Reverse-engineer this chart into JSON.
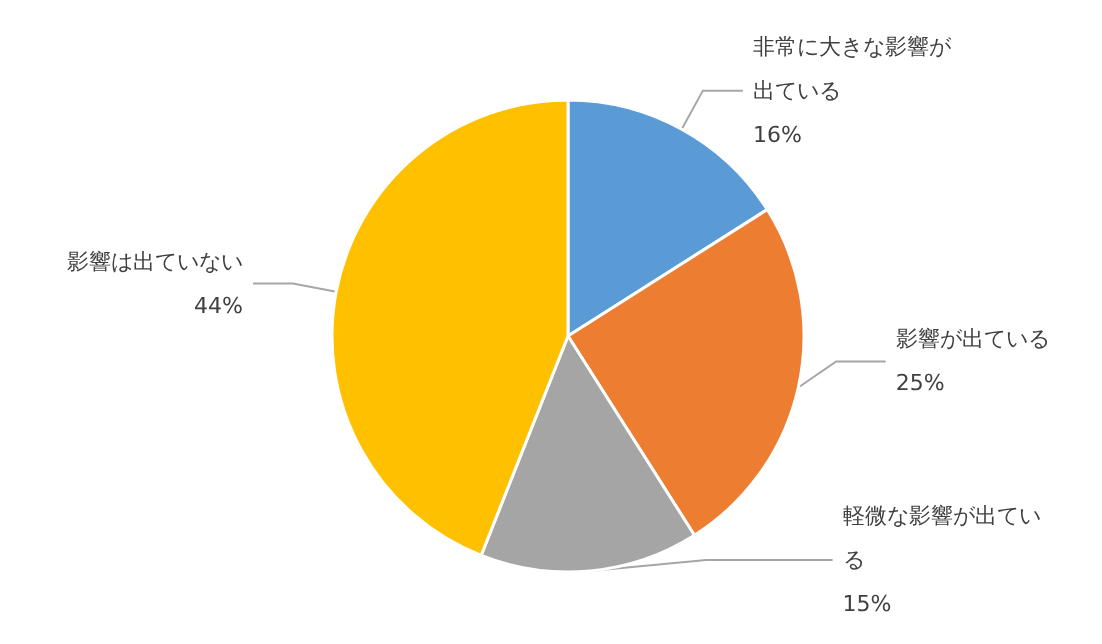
{
  "chart_data": {
    "type": "pie",
    "categories": [
      "非常に大きな影響が出ている",
      "影響が出ている",
      "軽微な影響が出ている",
      "影響は出ていない"
    ],
    "values": [
      16,
      25,
      15,
      44
    ],
    "colors": [
      "#5b9bd5",
      "#ed7d31",
      "#a5a5a5",
      "#ffc000"
    ],
    "value_labels": [
      "16%",
      "25%",
      "15%",
      "44%"
    ],
    "legend": false
  }
}
